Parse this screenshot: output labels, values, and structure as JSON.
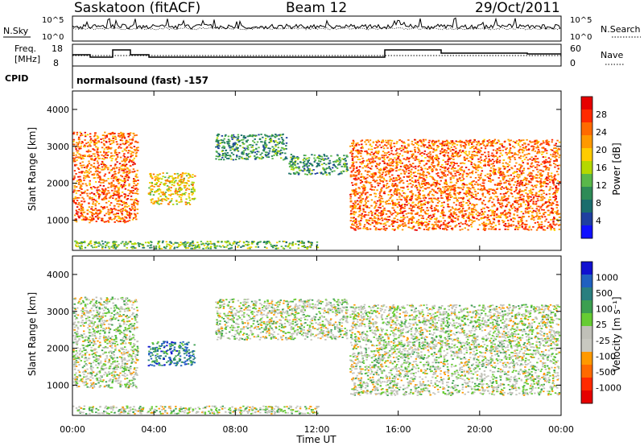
{
  "header": {
    "station": "Saskatoon (fitACF)",
    "beam": "Beam 12",
    "date": "29/Oct/2011"
  },
  "noise_panel": {
    "left_label": "N.Sky",
    "right_label": "N.Search",
    "left_ticks": [
      "10^5",
      "10^0"
    ],
    "right_ticks": [
      "10^5",
      "10^0"
    ]
  },
  "freq_panel": {
    "left_label_line1": "Freq.",
    "left_label_line2": "[MHz]",
    "left_ticks": [
      "18",
      "8"
    ],
    "right_ticks": [
      "60",
      "0"
    ],
    "right_label": "Nave"
  },
  "cpid": {
    "label": "CPID",
    "text": "normalsound (fast) -157"
  },
  "chart_data": [
    {
      "type": "heatmap",
      "title": "",
      "xlabel": "",
      "ylabel": "Slant Range [km]",
      "x_range_hours": [
        0,
        24
      ],
      "ylim": [
        180,
        4500
      ],
      "yticks": [
        "1000",
        "2000",
        "3000",
        "4000"
      ],
      "colorbar": {
        "label": "Power [dB]",
        "ticks": [
          "28",
          "24",
          "20",
          "16",
          "12",
          "8",
          "4"
        ],
        "colors": [
          "#e60000",
          "#ff2a00",
          "#ff6a00",
          "#ff9900",
          "#ffcc00",
          "#b5d800",
          "#5ab84a",
          "#2e8b57",
          "#1a6d6d",
          "#1f3fa0",
          "#1010ff"
        ]
      },
      "regions": [
        {
          "t": [
            0.0,
            3.3
          ],
          "r": [
            900,
            3400
          ],
          "mean_db": 22
        },
        {
          "t": [
            3.7,
            6.1
          ],
          "r": [
            1400,
            2300
          ],
          "mean_db": 18
        },
        {
          "t": [
            7.0,
            10.6
          ],
          "r": [
            2600,
            3350
          ],
          "mean_db": 8
        },
        {
          "t": [
            10.6,
            13.6
          ],
          "r": [
            2200,
            2800
          ],
          "mean_db": 8
        },
        {
          "t": [
            13.6,
            24.0
          ],
          "r": [
            700,
            3200
          ],
          "mean_db": 22
        },
        {
          "t": [
            0.0,
            12.2
          ],
          "r": [
            200,
            450
          ],
          "mean_db": 10
        }
      ]
    },
    {
      "type": "heatmap",
      "title": "",
      "xlabel": "Time UT",
      "ylabel": "Slant Range [km]",
      "x_range_hours": [
        0,
        24
      ],
      "ylim": [
        180,
        4500
      ],
      "yticks": [
        "1000",
        "2000",
        "3000",
        "4000"
      ],
      "xticks": [
        "00:00",
        "04:00",
        "08:00",
        "12:00",
        "16:00",
        "20:00",
        "00:00"
      ],
      "colorbar": {
        "label": "Velocity [m s⁻¹]",
        "ticks": [
          "1000",
          "500",
          "100",
          "25",
          "-25",
          "-100",
          "-500",
          "-1000"
        ],
        "colors": [
          "#1010d0",
          "#2060c0",
          "#2a7f7f",
          "#3c9f50",
          "#66cc33",
          "#c0c0b8",
          "#c8c8c0",
          "#ff9900",
          "#ff6a00",
          "#ff2a00",
          "#e60000"
        ]
      },
      "regions": [
        {
          "t": [
            0.0,
            3.3
          ],
          "r": [
            900,
            3400
          ],
          "mean_velocity": 0
        },
        {
          "t": [
            3.7,
            6.1
          ],
          "r": [
            1500,
            2200
          ],
          "mean_velocity": 300
        },
        {
          "t": [
            7.0,
            13.6
          ],
          "r": [
            2200,
            3350
          ],
          "mean_velocity": 0
        },
        {
          "t": [
            13.6,
            24.0
          ],
          "r": [
            700,
            3200
          ],
          "mean_velocity": 0
        },
        {
          "t": [
            0.0,
            12.2
          ],
          "r": [
            200,
            450
          ],
          "mean_velocity": 0
        }
      ]
    }
  ]
}
